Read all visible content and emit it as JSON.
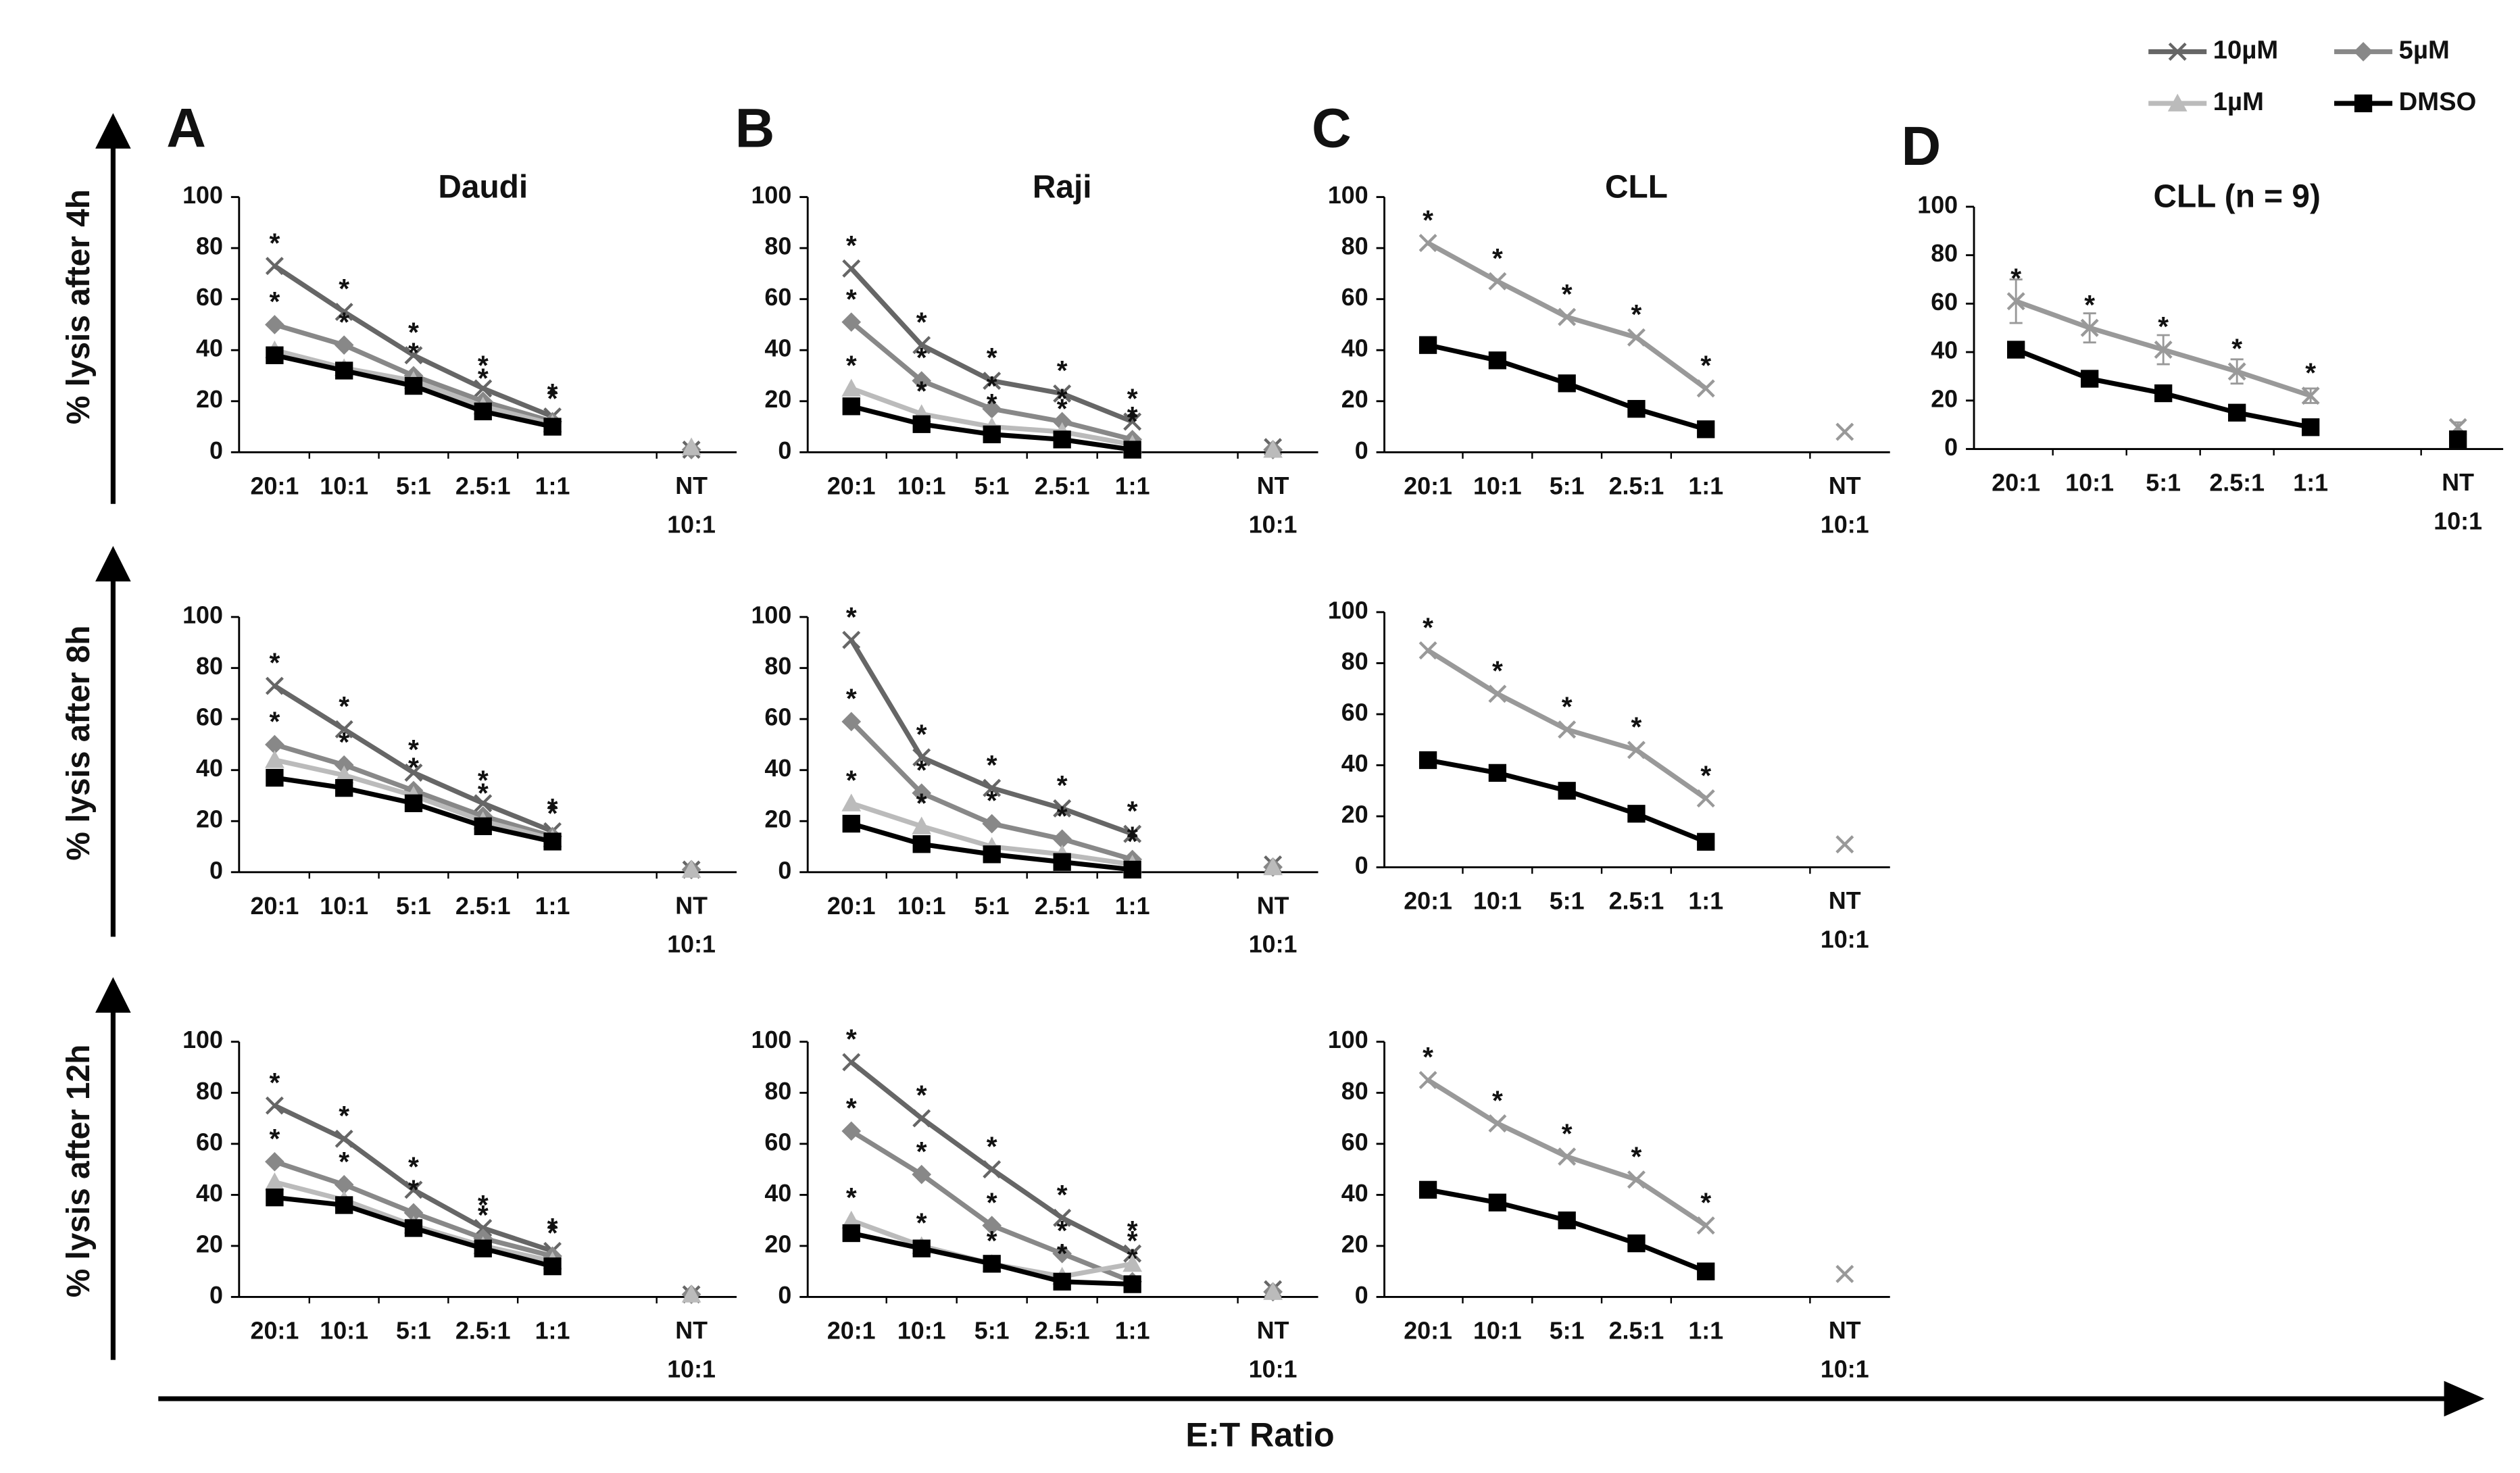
{
  "legend": [
    {
      "name": "10µM",
      "color": "#666666",
      "marker": "x"
    },
    {
      "name": "5µM",
      "color": "#888888",
      "marker": "diamond"
    },
    {
      "name": "1µM",
      "color": "#bbbbbb",
      "marker": "triangle"
    },
    {
      "name": "DMSO",
      "color": "#000000",
      "marker": "square"
    }
  ],
  "y_labels": [
    "% lysis after 4h",
    "% lysis after 8h",
    "% lysis after 12h"
  ],
  "x_label": "E:T Ratio",
  "chart_data": [
    {
      "type": "line",
      "label": "A",
      "title": "Daudi",
      "categories": [
        "20:1",
        "10:1",
        "5:1",
        "2.5:1",
        "1:1",
        null,
        "NT\n10:1"
      ],
      "ylim": [
        0,
        100
      ],
      "yticks": [
        0,
        20,
        40,
        60,
        80,
        100
      ],
      "series": [
        {
          "key": 0,
          "color": "#666666",
          "values": [
            73,
            55,
            38,
            25,
            14,
            null,
            1
          ],
          "annotations": [
            "*",
            "*",
            "*",
            "*",
            "*",
            null,
            null
          ]
        },
        {
          "key": 1,
          "color": "#888888",
          "values": [
            50,
            42,
            30,
            20,
            12,
            null,
            1
          ],
          "annotations": [
            "*",
            "*",
            "*",
            "*",
            "*",
            null,
            null
          ]
        },
        {
          "key": 2,
          "color": "#bbbbbb",
          "values": [
            40,
            33,
            28,
            18,
            11,
            null,
            2
          ]
        },
        {
          "key": 3,
          "color": "#000000",
          "values": [
            38,
            32,
            26,
            16,
            10,
            null,
            null
          ]
        }
      ]
    },
    {
      "type": "line",
      "label": "B",
      "title": "Raji",
      "categories": [
        "20:1",
        "10:1",
        "5:1",
        "2.5:1",
        "1:1",
        null,
        "NT\n10:1"
      ],
      "ylim": [
        0,
        100
      ],
      "yticks": [
        0,
        20,
        40,
        60,
        80,
        100
      ],
      "series": [
        {
          "key": 0,
          "color": "#666666",
          "values": [
            72,
            42,
            28,
            23,
            12,
            null,
            2
          ],
          "annotations": [
            "*",
            "*",
            "*",
            "*",
            "*",
            null,
            null
          ]
        },
        {
          "key": 1,
          "color": "#888888",
          "values": [
            51,
            28,
            17,
            12,
            5,
            null,
            1
          ],
          "annotations": [
            "*",
            "*",
            "*",
            "*",
            "*",
            null,
            null
          ]
        },
        {
          "key": 2,
          "color": "#bbbbbb",
          "values": [
            25,
            15,
            10,
            8,
            3,
            null,
            1
          ],
          "annotations": [
            "*",
            "*",
            "*",
            "*",
            "*",
            null,
            null
          ]
        },
        {
          "key": 3,
          "color": "#000000",
          "values": [
            18,
            11,
            7,
            5,
            1,
            null,
            null
          ]
        }
      ]
    },
    {
      "type": "line",
      "label": "C",
      "title": "CLL",
      "categories": [
        "20:1",
        "10:1",
        "5:1",
        "2.5:1",
        "1:1",
        null,
        "NT\n10:1"
      ],
      "ylim": [
        0,
        100
      ],
      "yticks": [
        0,
        20,
        40,
        60,
        80,
        100
      ],
      "series": [
        {
          "key": 0,
          "color": "#999999",
          "values": [
            82,
            67,
            53,
            45,
            25,
            null,
            8
          ],
          "annotations": [
            "*",
            "*",
            "*",
            "*",
            "*",
            null,
            null
          ]
        },
        {
          "key": 3,
          "color": "#000000",
          "values": [
            42,
            36,
            27,
            17,
            9,
            null,
            null
          ]
        }
      ]
    },
    {
      "type": "line",
      "label": "D",
      "title": "CLL (n = 9)",
      "categories": [
        "20:1",
        "10:1",
        "5:1",
        "2.5:1",
        "1:1",
        null,
        "NT\n10:1"
      ],
      "ylim": [
        0,
        100
      ],
      "yticks": [
        0,
        20,
        40,
        60,
        80,
        100
      ],
      "series": [
        {
          "key": 0,
          "color": "#999999",
          "values": [
            61,
            50,
            41,
            32,
            22,
            null,
            9
          ],
          "errors": [
            9,
            6,
            6,
            5,
            3,
            null,
            2
          ],
          "annotations": [
            "*",
            "*",
            "*",
            "*",
            "*",
            null,
            null
          ]
        },
        {
          "key": 3,
          "color": "#000000",
          "values": [
            41,
            29,
            23,
            15,
            9,
            null,
            4
          ]
        }
      ]
    },
    {
      "type": "line",
      "categories": [
        "20:1",
        "10:1",
        "5:1",
        "2.5:1",
        "1:1",
        null,
        "NT\n10:1"
      ],
      "ylim": [
        0,
        100
      ],
      "yticks": [
        0,
        20,
        40,
        60,
        80,
        100
      ],
      "series": [
        {
          "key": 0,
          "color": "#666666",
          "values": [
            73,
            56,
            39,
            27,
            16,
            null,
            1
          ],
          "annotations": [
            "*",
            "*",
            "*",
            "*",
            "*",
            null,
            null
          ]
        },
        {
          "key": 1,
          "color": "#888888",
          "values": [
            50,
            42,
            32,
            22,
            14,
            null,
            1
          ],
          "annotations": [
            "*",
            "*",
            "*",
            "*",
            "*",
            null,
            null
          ]
        },
        {
          "key": 2,
          "color": "#bbbbbb",
          "values": [
            44,
            38,
            30,
            20,
            13,
            null,
            1
          ]
        },
        {
          "key": 3,
          "color": "#000000",
          "values": [
            37,
            33,
            27,
            18,
            12,
            null,
            null
          ]
        }
      ]
    },
    {
      "type": "line",
      "categories": [
        "20:1",
        "10:1",
        "5:1",
        "2.5:1",
        "1:1",
        null,
        "NT\n10:1"
      ],
      "ylim": [
        0,
        100
      ],
      "yticks": [
        0,
        20,
        40,
        60,
        80,
        100
      ],
      "series": [
        {
          "key": 0,
          "color": "#666666",
          "values": [
            91,
            45,
            33,
            25,
            15,
            null,
            3
          ],
          "annotations": [
            "*",
            "*",
            "*",
            "*",
            "*",
            null,
            null
          ]
        },
        {
          "key": 1,
          "color": "#888888",
          "values": [
            59,
            31,
            19,
            13,
            5,
            null,
            2
          ],
          "annotations": [
            "*",
            "*",
            "*",
            "*",
            "*",
            null,
            null
          ]
        },
        {
          "key": 2,
          "color": "#bbbbbb",
          "values": [
            27,
            18,
            10,
            7,
            3,
            null,
            2
          ],
          "annotations": [
            "*",
            "*",
            null,
            null,
            "*",
            null,
            null
          ]
        },
        {
          "key": 3,
          "color": "#000000",
          "values": [
            19,
            11,
            7,
            4,
            1,
            null,
            null
          ]
        }
      ]
    },
    {
      "type": "line",
      "categories": [
        "20:1",
        "10:1",
        "5:1",
        "2.5:1",
        "1:1",
        null,
        "NT\n10:1"
      ],
      "ylim": [
        0,
        100
      ],
      "yticks": [
        0,
        20,
        40,
        60,
        80,
        100
      ],
      "series": [
        {
          "key": 0,
          "color": "#999999",
          "values": [
            85,
            68,
            54,
            46,
            27,
            null,
            9
          ],
          "annotations": [
            "*",
            "*",
            "*",
            "*",
            "*",
            null,
            null
          ]
        },
        {
          "key": 3,
          "color": "#000000",
          "values": [
            42,
            37,
            30,
            21,
            10,
            null,
            null
          ]
        }
      ]
    },
    {
      "type": "line",
      "categories": [
        "20:1",
        "10:1",
        "5:1",
        "2.5:1",
        "1:1",
        null,
        "NT\n10:1"
      ],
      "ylim": [
        0,
        100
      ],
      "yticks": [
        0,
        20,
        40,
        60,
        80,
        100
      ],
      "series": [
        {
          "key": 0,
          "color": "#666666",
          "values": [
            75,
            62,
            42,
            27,
            18,
            null,
            1
          ],
          "annotations": [
            "*",
            "*",
            "*",
            "*",
            "*",
            null,
            null
          ]
        },
        {
          "key": 1,
          "color": "#888888",
          "values": [
            53,
            44,
            33,
            23,
            16,
            null,
            1
          ],
          "annotations": [
            "*",
            "*",
            "*",
            "*",
            "*",
            null,
            null
          ]
        },
        {
          "key": 2,
          "color": "#bbbbbb",
          "values": [
            45,
            38,
            28,
            20,
            14,
            null,
            1
          ]
        },
        {
          "key": 3,
          "color": "#000000",
          "values": [
            39,
            36,
            27,
            19,
            12,
            null,
            null
          ]
        }
      ]
    },
    {
      "type": "line",
      "categories": [
        "20:1",
        "10:1",
        "5:1",
        "2.5:1",
        "1:1",
        null,
        "NT\n10:1"
      ],
      "ylim": [
        0,
        100
      ],
      "yticks": [
        0,
        20,
        40,
        60,
        80,
        100
      ],
      "series": [
        {
          "key": 0,
          "color": "#666666",
          "values": [
            92,
            70,
            50,
            31,
            17,
            null,
            3
          ],
          "annotations": [
            "*",
            "*",
            "*",
            "*",
            "*",
            null,
            null
          ]
        },
        {
          "key": 1,
          "color": "#888888",
          "values": [
            65,
            48,
            28,
            17,
            6,
            null,
            2
          ],
          "annotations": [
            "*",
            "*",
            "*",
            "*",
            "*",
            null,
            null
          ]
        },
        {
          "key": 2,
          "color": "#bbbbbb",
          "values": [
            30,
            20,
            13,
            8,
            13,
            null,
            2
          ],
          "annotations": [
            "*",
            "*",
            "*",
            "*",
            "*",
            null,
            null
          ]
        },
        {
          "key": 3,
          "color": "#000000",
          "values": [
            25,
            19,
            13,
            6,
            5,
            null,
            null
          ]
        }
      ]
    },
    {
      "type": "line",
      "categories": [
        "20:1",
        "10:1",
        "5:1",
        "2.5:1",
        "1:1",
        null,
        "NT\n10:1"
      ],
      "ylim": [
        0,
        100
      ],
      "yticks": [
        0,
        20,
        40,
        60,
        80,
        100
      ],
      "series": [
        {
          "key": 0,
          "color": "#999999",
          "values": [
            85,
            68,
            55,
            46,
            28,
            null,
            9
          ],
          "annotations": [
            "*",
            "*",
            "*",
            "*",
            "*",
            null,
            null
          ]
        },
        {
          "key": 3,
          "color": "#000000",
          "values": [
            42,
            37,
            30,
            21,
            10,
            null,
            null
          ]
        }
      ]
    }
  ]
}
